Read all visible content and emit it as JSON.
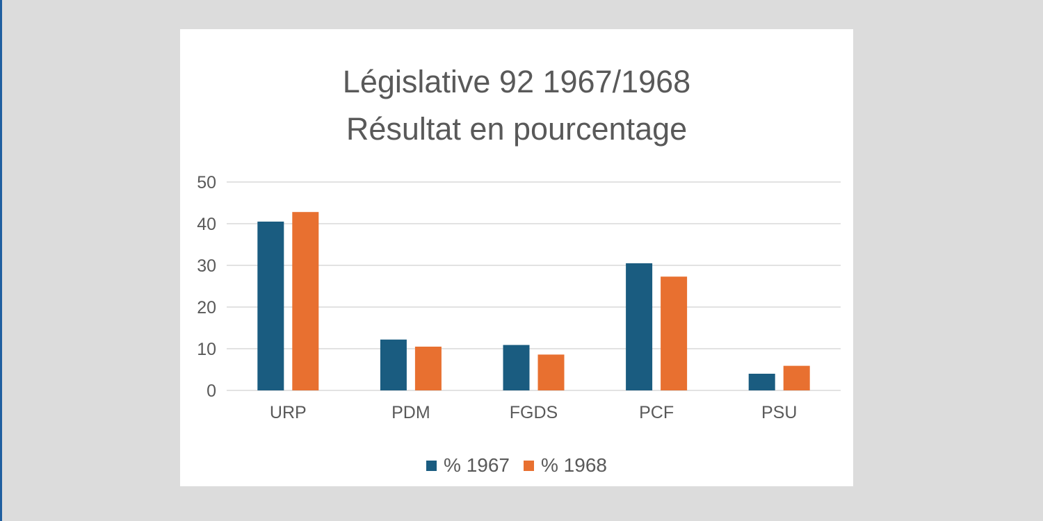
{
  "colors": {
    "background": "#dcdcdc",
    "accent": "#1f5fa0",
    "series_1967": "#1a5c80",
    "series_1968": "#e87030",
    "text": "#595959",
    "grid": "#d9d9d9"
  },
  "chart_data": {
    "type": "bar",
    "title": "Législative 92 1967/1968",
    "subtitle": "Résultat en pourcentage",
    "xlabel": "",
    "ylabel": "",
    "categories": [
      "URP",
      "PDM",
      "FGDS",
      "PCF",
      "PSU"
    ],
    "series": [
      {
        "name": "% 1967",
        "color": "#1a5c80",
        "values": [
          40.5,
          12.2,
          10.9,
          30.5,
          4.0
        ]
      },
      {
        "name": "% 1968",
        "color": "#e87030",
        "values": [
          42.8,
          10.5,
          8.6,
          27.3,
          5.9
        ]
      }
    ],
    "ylim": [
      0,
      50
    ],
    "yticks": [
      0,
      10,
      20,
      30,
      40,
      50
    ],
    "grid": true,
    "legend_position": "bottom"
  }
}
